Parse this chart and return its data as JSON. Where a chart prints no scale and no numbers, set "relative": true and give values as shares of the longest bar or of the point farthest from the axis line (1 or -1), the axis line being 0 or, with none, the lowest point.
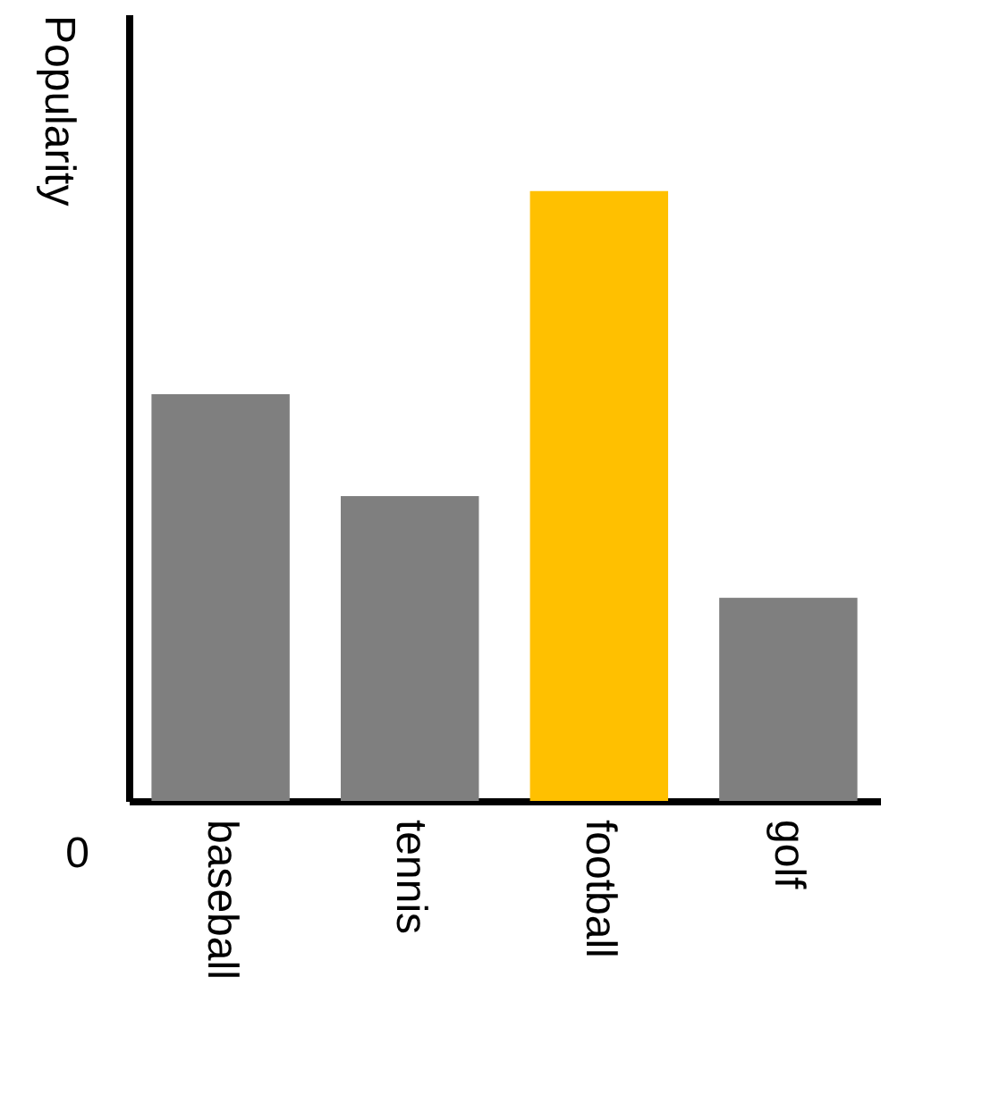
{
  "chart_data": {
    "type": "bar",
    "ylabel": "Popularity",
    "relative": true,
    "categories": [
      "baseball",
      "tennis",
      "football",
      "golf"
    ],
    "values": [
      0.667,
      0.5,
      1,
      0.333
    ],
    "colors": [
      "#7f7f7f",
      "#7f7f7f",
      "#ffc000",
      "#7f7f7f"
    ],
    "annotations": [
      "0"
    ]
  }
}
